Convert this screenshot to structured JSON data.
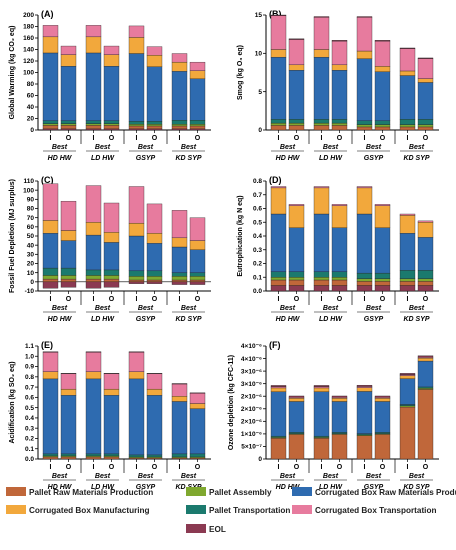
{
  "colors": {
    "Pallet Raw Materials Production": "#c0673a",
    "Pallet Assembly": "#7fa82f",
    "Pallet Transportation": "#1b7a6e",
    "Corrugated Box Raw Materials Production": "#2e6bb0",
    "Corrugated Box Manufacturing": "#f2a83c",
    "Corrugated Box Transportation": "#e77b9e",
    "EOL": "#8b3a52"
  },
  "legend": [
    "Pallet Raw Materials Production",
    "Pallet Assembly",
    "Corrugated Box Raw Materials Production",
    "Corrugated Box Manufacturing",
    "Pallet Transportation",
    "Corrugated Box Transportation",
    "EOL"
  ],
  "chart_data": [
    {
      "type": "bar",
      "panel": "(A)",
      "ylabel": "Global Warming (kg CO₂ eq)",
      "ylim": [
        0,
        200
      ],
      "yticks": [
        "0",
        "20",
        "40",
        "60",
        "80",
        "100",
        "120",
        "140",
        "160",
        "180",
        "200"
      ],
      "tick_values": [
        0,
        20,
        40,
        60,
        80,
        100,
        120,
        140,
        160,
        180,
        200
      ],
      "groups": [
        "HD HW",
        "LD HW",
        "GSYP",
        "KD SYP"
      ],
      "categories": [
        "I",
        "O",
        "I",
        "O",
        "I",
        "O",
        "I",
        "O"
      ],
      "best_labels": [
        "Best",
        "Best",
        "Best",
        "Best"
      ],
      "series": [
        {
          "name": "EOL",
          "values": [
            2,
            2,
            2,
            2,
            2,
            2,
            2,
            2
          ]
        },
        {
          "name": "Pallet Raw Materials Production",
          "values": [
            6,
            6,
            6,
            6,
            5,
            5,
            5,
            5
          ]
        },
        {
          "name": "Pallet Assembly",
          "values": [
            3,
            3,
            3,
            3,
            3,
            3,
            3,
            3
          ]
        },
        {
          "name": "Pallet Transportation",
          "values": [
            5,
            5,
            5,
            5,
            5,
            5,
            7,
            7
          ]
        },
        {
          "name": "Corrugated Box Raw Materials Production",
          "values": [
            118,
            95,
            118,
            95,
            118,
            95,
            85,
            72
          ]
        },
        {
          "name": "Corrugated Box Manufacturing",
          "values": [
            28,
            20,
            28,
            20,
            28,
            20,
            16,
            14
          ]
        },
        {
          "name": "Corrugated Box Transportation",
          "values": [
            20,
            15,
            20,
            15,
            20,
            15,
            15,
            15
          ]
        }
      ]
    },
    {
      "type": "bar",
      "panel": "(B)",
      "ylabel": "Smog (kg O₃ eq)",
      "ylim": [
        0,
        15
      ],
      "yticks": [
        "0",
        "5",
        "10",
        "15"
      ],
      "tick_values": [
        0,
        5,
        10,
        15
      ],
      "groups": [
        "HD HW",
        "LD HW",
        "GSYP",
        "KD SYP"
      ],
      "categories": [
        "I",
        "O",
        "I",
        "O",
        "I",
        "O",
        "I",
        "O"
      ],
      "best_labels": [
        "Best",
        "Best",
        "Best",
        "Best"
      ],
      "series": [
        {
          "name": "Pallet Raw Materials Production",
          "values": [
            0.6,
            0.6,
            0.6,
            0.6,
            0.4,
            0.4,
            0.4,
            0.4
          ]
        },
        {
          "name": "Pallet Assembly",
          "values": [
            0.3,
            0.3,
            0.3,
            0.3,
            0.3,
            0.3,
            0.3,
            0.3
          ]
        },
        {
          "name": "Pallet Transportation",
          "values": [
            0.5,
            0.5,
            0.5,
            0.5,
            0.5,
            0.5,
            0.7,
            0.7
          ]
        },
        {
          "name": "Corrugated Box Raw Materials Production",
          "values": [
            8.1,
            6.4,
            8.1,
            6.4,
            8.1,
            6.4,
            5.7,
            4.8
          ]
        },
        {
          "name": "Corrugated Box Manufacturing",
          "values": [
            1.0,
            0.7,
            1.0,
            0.7,
            1.0,
            0.7,
            0.6,
            0.5
          ]
        },
        {
          "name": "Corrugated Box Transportation",
          "values": [
            4.4,
            3.3,
            4.2,
            3.1,
            4.4,
            3.3,
            2.9,
            2.6
          ]
        },
        {
          "name": "EOL",
          "values": [
            0.1,
            0.1,
            0.1,
            0.1,
            0.1,
            0.1,
            0.1,
            0.1
          ]
        }
      ]
    },
    {
      "type": "bar",
      "panel": "(C)",
      "ylabel": "Fossil Fuel Depletion (MJ surplus)",
      "ylim": [
        -10,
        110
      ],
      "yticks": [
        "-10",
        "0",
        "10",
        "20",
        "30",
        "40",
        "50",
        "60",
        "70",
        "80",
        "90",
        "100",
        "110"
      ],
      "tick_values": [
        -10,
        0,
        10,
        20,
        30,
        40,
        50,
        60,
        70,
        80,
        90,
        100,
        110
      ],
      "groups": [
        "HD HW",
        "LD HW",
        "GSYP",
        "KD SYP"
      ],
      "categories": [
        "I",
        "O",
        "I",
        "O",
        "I",
        "O",
        "I",
        "O"
      ],
      "best_labels": [
        "Best",
        "Best",
        "Best",
        "Best"
      ],
      "series": [
        {
          "name": "EOL",
          "values": [
            -7,
            -6,
            -7,
            -6,
            -2,
            -2,
            -3,
            -3
          ]
        },
        {
          "name": "Pallet Raw Materials Production",
          "values": [
            3,
            3,
            3,
            3,
            2,
            2,
            2,
            2
          ]
        },
        {
          "name": "Pallet Assembly",
          "values": [
            4,
            4,
            4,
            4,
            4,
            4,
            4,
            4
          ]
        },
        {
          "name": "Pallet Transportation",
          "values": [
            8,
            8,
            6,
            6,
            6,
            6,
            4,
            4
          ]
        },
        {
          "name": "Corrugated Box Raw Materials Production",
          "values": [
            38,
            30,
            38,
            30,
            38,
            30,
            28,
            25
          ]
        },
        {
          "name": "Corrugated Box Manufacturing",
          "values": [
            14,
            11,
            14,
            11,
            14,
            11,
            10,
            10
          ]
        },
        {
          "name": "Corrugated Box Transportation",
          "values": [
            40,
            32,
            40,
            32,
            40,
            32,
            30,
            25
          ]
        }
      ]
    },
    {
      "type": "bar",
      "panel": "(D)",
      "ylabel": "Eutrophication (kg N eq)",
      "ylim": [
        0,
        0.8
      ],
      "yticks": [
        "0.0",
        "0.1",
        "0.2",
        "0.3",
        "0.4",
        "0.5",
        "0.6",
        "0.7",
        "0.8"
      ],
      "tick_values": [
        0,
        0.1,
        0.2,
        0.3,
        0.4,
        0.5,
        0.6,
        0.7,
        0.8
      ],
      "groups": [
        "HD HW",
        "LD HW",
        "GSYP",
        "KD SYP"
      ],
      "categories": [
        "I",
        "O",
        "I",
        "O",
        "I",
        "O",
        "I",
        "O"
      ],
      "best_labels": [
        "Best",
        "Best",
        "Best",
        "Best"
      ],
      "series": [
        {
          "name": "EOL",
          "values": [
            0.04,
            0.04,
            0.04,
            0.04,
            0.04,
            0.04,
            0.04,
            0.04
          ]
        },
        {
          "name": "Pallet Raw Materials Production",
          "values": [
            0.04,
            0.04,
            0.04,
            0.04,
            0.03,
            0.03,
            0.03,
            0.03
          ]
        },
        {
          "name": "Pallet Assembly",
          "values": [
            0.02,
            0.02,
            0.02,
            0.02,
            0.02,
            0.02,
            0.02,
            0.02
          ]
        },
        {
          "name": "Pallet Transportation",
          "values": [
            0.04,
            0.04,
            0.04,
            0.04,
            0.04,
            0.04,
            0.06,
            0.06
          ]
        },
        {
          "name": "Corrugated Box Raw Materials Production",
          "values": [
            0.42,
            0.32,
            0.42,
            0.32,
            0.43,
            0.33,
            0.27,
            0.24
          ]
        },
        {
          "name": "Corrugated Box Manufacturing",
          "values": [
            0.19,
            0.16,
            0.19,
            0.16,
            0.19,
            0.16,
            0.13,
            0.11
          ]
        },
        {
          "name": "Corrugated Box Transportation",
          "values": [
            0.01,
            0.01,
            0.01,
            0.01,
            0.01,
            0.01,
            0.01,
            0.01
          ]
        }
      ]
    },
    {
      "type": "bar",
      "panel": "(E)",
      "ylabel": "Acidification (kg SO₂ eq)",
      "ylim": [
        0,
        1.1
      ],
      "yticks": [
        "0.0",
        "0.1",
        "0.2",
        "0.3",
        "0.4",
        "0.5",
        "0.6",
        "0.7",
        "0.8",
        "0.9",
        "1.0",
        "1.1"
      ],
      "tick_values": [
        0,
        0.1,
        0.2,
        0.3,
        0.4,
        0.5,
        0.6,
        0.7,
        0.8,
        0.9,
        1.0,
        1.1
      ],
      "groups": [
        "HD HW",
        "LD HW",
        "GSYP",
        "KD SYP"
      ],
      "categories": [
        "I",
        "O",
        "I",
        "O",
        "I",
        "O",
        "I",
        "O"
      ],
      "best_labels": [
        "Best",
        "Best",
        "Best",
        "Best"
      ],
      "series": [
        {
          "name": "Pallet Raw Materials Production",
          "values": [
            0.02,
            0.02,
            0.02,
            0.02,
            0.01,
            0.01,
            0.01,
            0.01
          ]
        },
        {
          "name": "Pallet Assembly",
          "values": [
            0.01,
            0.01,
            0.01,
            0.01,
            0.01,
            0.01,
            0.01,
            0.01
          ]
        },
        {
          "name": "Pallet Transportation",
          "values": [
            0.02,
            0.02,
            0.02,
            0.02,
            0.02,
            0.02,
            0.03,
            0.03
          ]
        },
        {
          "name": "Corrugated Box Raw Materials Production",
          "values": [
            0.73,
            0.57,
            0.73,
            0.57,
            0.74,
            0.58,
            0.51,
            0.44
          ]
        },
        {
          "name": "Corrugated Box Manufacturing",
          "values": [
            0.07,
            0.06,
            0.07,
            0.06,
            0.07,
            0.06,
            0.05,
            0.05
          ]
        },
        {
          "name": "Corrugated Box Transportation",
          "values": [
            0.19,
            0.15,
            0.19,
            0.15,
            0.19,
            0.15,
            0.12,
            0.1
          ]
        },
        {
          "name": "EOL",
          "values": [
            0.005,
            0.005,
            0.005,
            0.005,
            0.005,
            0.005,
            0.005,
            0.005
          ]
        }
      ]
    },
    {
      "type": "bar",
      "panel": "(F)",
      "ylabel": "Ozone depletion (kg CFC-11)",
      "ylim": [
        0,
        4.5e-06
      ],
      "yticks": [
        "0",
        "5×10⁻⁷",
        "1×10⁻⁶",
        "2×10⁻⁶",
        "2×10⁻⁶",
        "2×10⁻⁶",
        "3×10⁻⁶",
        "3×10⁻⁶",
        "4×10⁻⁶",
        "4×10⁻⁶"
      ],
      "tick_values": [
        0,
        5e-07,
        1e-06,
        1.5e-06,
        2e-06,
        2.5e-06,
        3e-06,
        3.5e-06,
        4e-06,
        4.5e-06
      ],
      "groups": [
        "HD HW",
        "LD HW",
        "GSYP",
        "KD SYP"
      ],
      "categories": [
        "I",
        "O",
        "I",
        "O",
        "I",
        "O",
        "I",
        "O"
      ],
      "best_labels": [
        "Best",
        "Best",
        "Best",
        "Best"
      ],
      "series": [
        {
          "name": "Pallet Raw Materials Production",
          "values": [
            8.3e-07,
            9.8e-07,
            8.3e-07,
            9.8e-07,
            9.3e-07,
            9.8e-07,
            2.07e-06,
            2.77e-06
          ]
        },
        {
          "name": "Pallet Assembly",
          "values": [
            3e-08,
            3e-08,
            3e-08,
            3e-08,
            3e-08,
            3e-08,
            5e-08,
            5e-08
          ]
        },
        {
          "name": "Pallet Transportation",
          "values": [
            5e-08,
            5e-08,
            5e-08,
            5e-08,
            5e-08,
            5e-08,
            5e-08,
            5e-08
          ]
        },
        {
          "name": "Corrugated Box Raw Materials Production",
          "values": [
            1.77e-06,
            1.23e-06,
            1.77e-06,
            1.23e-06,
            1.68e-06,
            1.23e-06,
            1.03e-06,
            1.03e-06
          ]
        },
        {
          "name": "Corrugated Box Manufacturing",
          "values": [
            1.5e-07,
            1.3e-07,
            1.5e-07,
            1.3e-07,
            1.5e-07,
            1.3e-07,
            1.2e-07,
            1.2e-07
          ]
        },
        {
          "name": "Corrugated Box Transportation",
          "values": [
            5e-08,
            4e-08,
            5e-08,
            4e-08,
            5e-08,
            4e-08,
            4e-08,
            4e-08
          ]
        },
        {
          "name": "EOL",
          "values": [
            5e-08,
            5e-08,
            5e-08,
            5e-08,
            5e-08,
            5e-08,
            5e-08,
            5e-08
          ]
        }
      ]
    }
  ]
}
